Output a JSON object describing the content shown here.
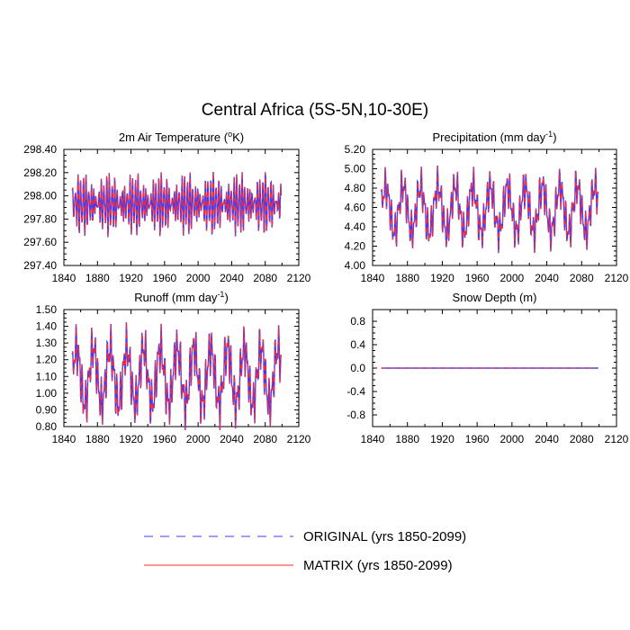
{
  "title": "Central Africa (5S-5N,10-30E)",
  "colors": {
    "original": "#3b3bff",
    "matrix": "#ff2a2a",
    "axis": "#000000"
  },
  "legend": {
    "original_label": "ORIGINAL (yrs 1850-2099)",
    "matrix_label": "MATRIX (yrs 1850-2099)"
  },
  "chart_data": [
    {
      "type": "line",
      "panel": "top-left",
      "title_main": "2m Air Temperature (",
      "title_sup": "o",
      "title_rest": "K)",
      "xlim": [
        1840,
        2120
      ],
      "ylim": [
        297.4,
        298.4
      ],
      "xticks": [
        "1840",
        "1880",
        "1920",
        "1960",
        "2000",
        "2040",
        "2080",
        "2120"
      ],
      "yticks": [
        "297.40",
        "297.60",
        "297.80",
        "298.00",
        "298.20",
        "298.40"
      ],
      "series": [
        {
          "name": "ORIGINAL (yrs 1850-2099)",
          "x_start": 1850,
          "x_end": 2099,
          "mean": 297.93,
          "amplitude": 0.27,
          "period": 3.1
        },
        {
          "name": "MATRIX (yrs 1850-2099)",
          "x_start": 1850,
          "x_end": 2099,
          "mean": 297.93,
          "amplitude": 0.27,
          "period": 3.1
        }
      ]
    },
    {
      "type": "line",
      "panel": "top-right",
      "title_main": "Precipitation (mm day",
      "title_sup": "-1",
      "title_rest": ")",
      "xlim": [
        1840,
        2120
      ],
      "ylim": [
        4.0,
        5.2
      ],
      "xticks": [
        "1840",
        "1880",
        "1920",
        "1960",
        "2000",
        "2040",
        "2080",
        "2120"
      ],
      "yticks": [
        "4.00",
        "4.20",
        "4.40",
        "4.60",
        "4.80",
        "5.00",
        "5.20"
      ],
      "series": [
        {
          "name": "ORIGINAL (yrs 1850-2099)",
          "x_start": 1850,
          "x_end": 2099,
          "mean": 4.58,
          "amplitude": 0.42,
          "period": 20
        },
        {
          "name": "MATRIX (yrs 1850-2099)",
          "x_start": 1850,
          "x_end": 2099,
          "mean": 4.58,
          "amplitude": 0.42,
          "period": 20
        }
      ]
    },
    {
      "type": "line",
      "panel": "bottom-left",
      "title_main": "Runoff (mm day",
      "title_sup": "-1",
      "title_rest": ")",
      "xlim": [
        1840,
        2120
      ],
      "ylim": [
        0.8,
        1.5
      ],
      "xticks": [
        "1840",
        "1880",
        "1920",
        "1960",
        "2000",
        "2040",
        "2080",
        "2120"
      ],
      "yticks": [
        "0.80",
        "0.90",
        "1.00",
        "1.10",
        "1.20",
        "1.30",
        "1.40",
        "1.50"
      ],
      "series": [
        {
          "name": "ORIGINAL (yrs 1850-2099)",
          "x_start": 1850,
          "x_end": 2099,
          "mean": 1.1,
          "amplitude": 0.3,
          "period": 20
        },
        {
          "name": "MATRIX (yrs 1850-2099)",
          "x_start": 1850,
          "x_end": 2099,
          "mean": 1.1,
          "amplitude": 0.3,
          "period": 20
        }
      ]
    },
    {
      "type": "line",
      "panel": "bottom-right",
      "title_main": "Snow Depth (m)",
      "title_sup": "",
      "title_rest": "",
      "xlim": [
        1840,
        2120
      ],
      "ylim": [
        -1.0,
        1.0
      ],
      "xticks": [
        "1840",
        "1880",
        "1920",
        "1960",
        "2000",
        "2040",
        "2080",
        "2120"
      ],
      "yticks": [
        "-0.8",
        "-0.4",
        "0.0",
        "0.4",
        "0.8"
      ],
      "series": [
        {
          "name": "ORIGINAL (yrs 1850-2099)",
          "x_start": 1850,
          "x_end": 2099,
          "mean": 0.0,
          "amplitude": 0.0,
          "period": 20
        },
        {
          "name": "MATRIX (yrs 1850-2099)",
          "x_start": 1850,
          "x_end": 2099,
          "mean": 0.0,
          "amplitude": 0.0,
          "period": 20
        }
      ]
    }
  ]
}
